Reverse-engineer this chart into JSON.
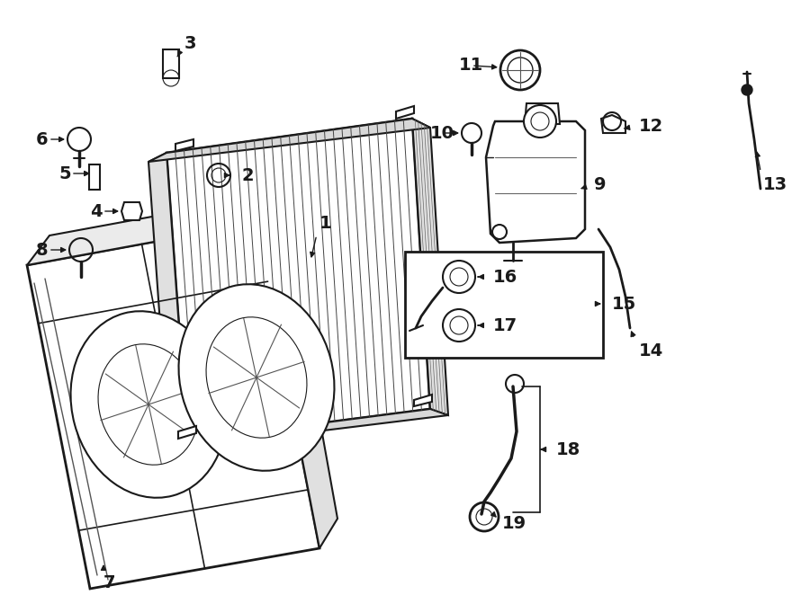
{
  "bg_color": "#ffffff",
  "line_color": "#1a1a1a",
  "figsize": [
    9.0,
    6.62
  ],
  "dpi": 100
}
